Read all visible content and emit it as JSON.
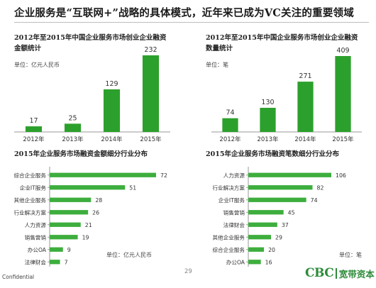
{
  "slide": {
    "title": "企业服务是“互联网+”战略的具体模式，近年来已成为VC关注的重要领域",
    "confidential": "Confidential",
    "page_number": "29",
    "logo": {
      "mark": "CBC",
      "name": "宽带资本"
    }
  },
  "colors": {
    "bar": "#2ca02c",
    "bar_light": "#3dae3d",
    "axis": "#9a9a9a",
    "text": "#333333"
  },
  "chart_data": [
    {
      "id": "amount-by-year",
      "type": "bar",
      "title_lines": [
        "2012年至2015年中国企业服务市场创业企业融资",
        "金额统计"
      ],
      "unit": "单位：亿元人民币",
      "categories": [
        "2012年",
        "2013年",
        "2014年",
        "2015年"
      ],
      "values": [
        17,
        25,
        129,
        232
      ],
      "ylim": [
        0,
        232
      ],
      "grid": false
    },
    {
      "id": "deals-by-year",
      "type": "bar",
      "title_lines": [
        "2012年至2015年中国企业服务市场创业企业融资",
        "数量统计"
      ],
      "unit": "单位：笔",
      "categories": [
        "2012年",
        "2013年",
        "2014年",
        "2015年"
      ],
      "values": [
        74,
        130,
        271,
        409
      ],
      "ylim": [
        0,
        409
      ],
      "grid": false
    },
    {
      "id": "amount-by-segment",
      "type": "bar",
      "orientation": "horizontal",
      "title": "2015年企业服务市场融资金额细分行业分布",
      "unit": "单位：亿元人民币",
      "categories": [
        "综合企业服务",
        "企业IT服务",
        "其他企业服务",
        "行业解决方案",
        "人力资源",
        "销售营销",
        "办公OA",
        "法律财会"
      ],
      "values": [
        72,
        51,
        28,
        26,
        21,
        19,
        9,
        7
      ],
      "xlim": [
        0,
        72
      ],
      "grid": false
    },
    {
      "id": "deals-by-segment",
      "type": "bar",
      "orientation": "horizontal",
      "title": "2015年企业服务市场融资笔数细分行业分布",
      "unit": "单位：笔",
      "categories": [
        "人力资源",
        "行业解决方案",
        "企业IT服务",
        "销售营销",
        "法律财会",
        "其他企业服务",
        "综合企业服务",
        "办公OA"
      ],
      "values": [
        106,
        82,
        74,
        45,
        37,
        29,
        20,
        16
      ],
      "xlim": [
        0,
        106
      ],
      "grid": false
    }
  ]
}
